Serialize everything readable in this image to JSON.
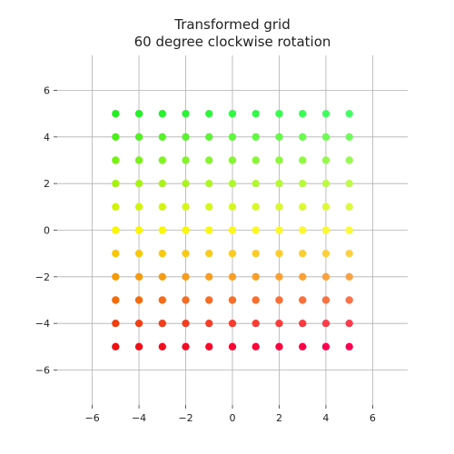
{
  "chart_data": {
    "type": "scatter",
    "title": "Transformed grid",
    "subtitle": "60 degree clockwise rotation",
    "xlabel": "",
    "ylabel": "",
    "xlim": [
      -7.5,
      7.5
    ],
    "ylim": [
      -7.5,
      7.5
    ],
    "xticks": [
      -6,
      -4,
      -2,
      0,
      2,
      4,
      6
    ],
    "yticks": [
      -6,
      -4,
      -2,
      0,
      2,
      4,
      6
    ],
    "xtick_labels": [
      "−6",
      "−4",
      "−2",
      "0",
      "2",
      "4",
      "6"
    ],
    "ytick_labels": [
      "−6",
      "−4",
      "−2",
      "0",
      "2",
      "4",
      "6"
    ],
    "grid": true,
    "legend": "none",
    "x_values": [
      -5,
      -4,
      -3,
      -2,
      -1,
      0,
      1,
      2,
      3,
      4,
      5
    ],
    "y_values": [
      5,
      4,
      3,
      2,
      1,
      0,
      -1,
      -2,
      -3,
      -4,
      -5
    ],
    "colors": {
      "top_row_left": "#22ee22",
      "top_row_right": "#44ff66",
      "bottom_row_left": "#ee1111",
      "bottom_row_right": "#ff0055"
    },
    "point_count": 121
  }
}
